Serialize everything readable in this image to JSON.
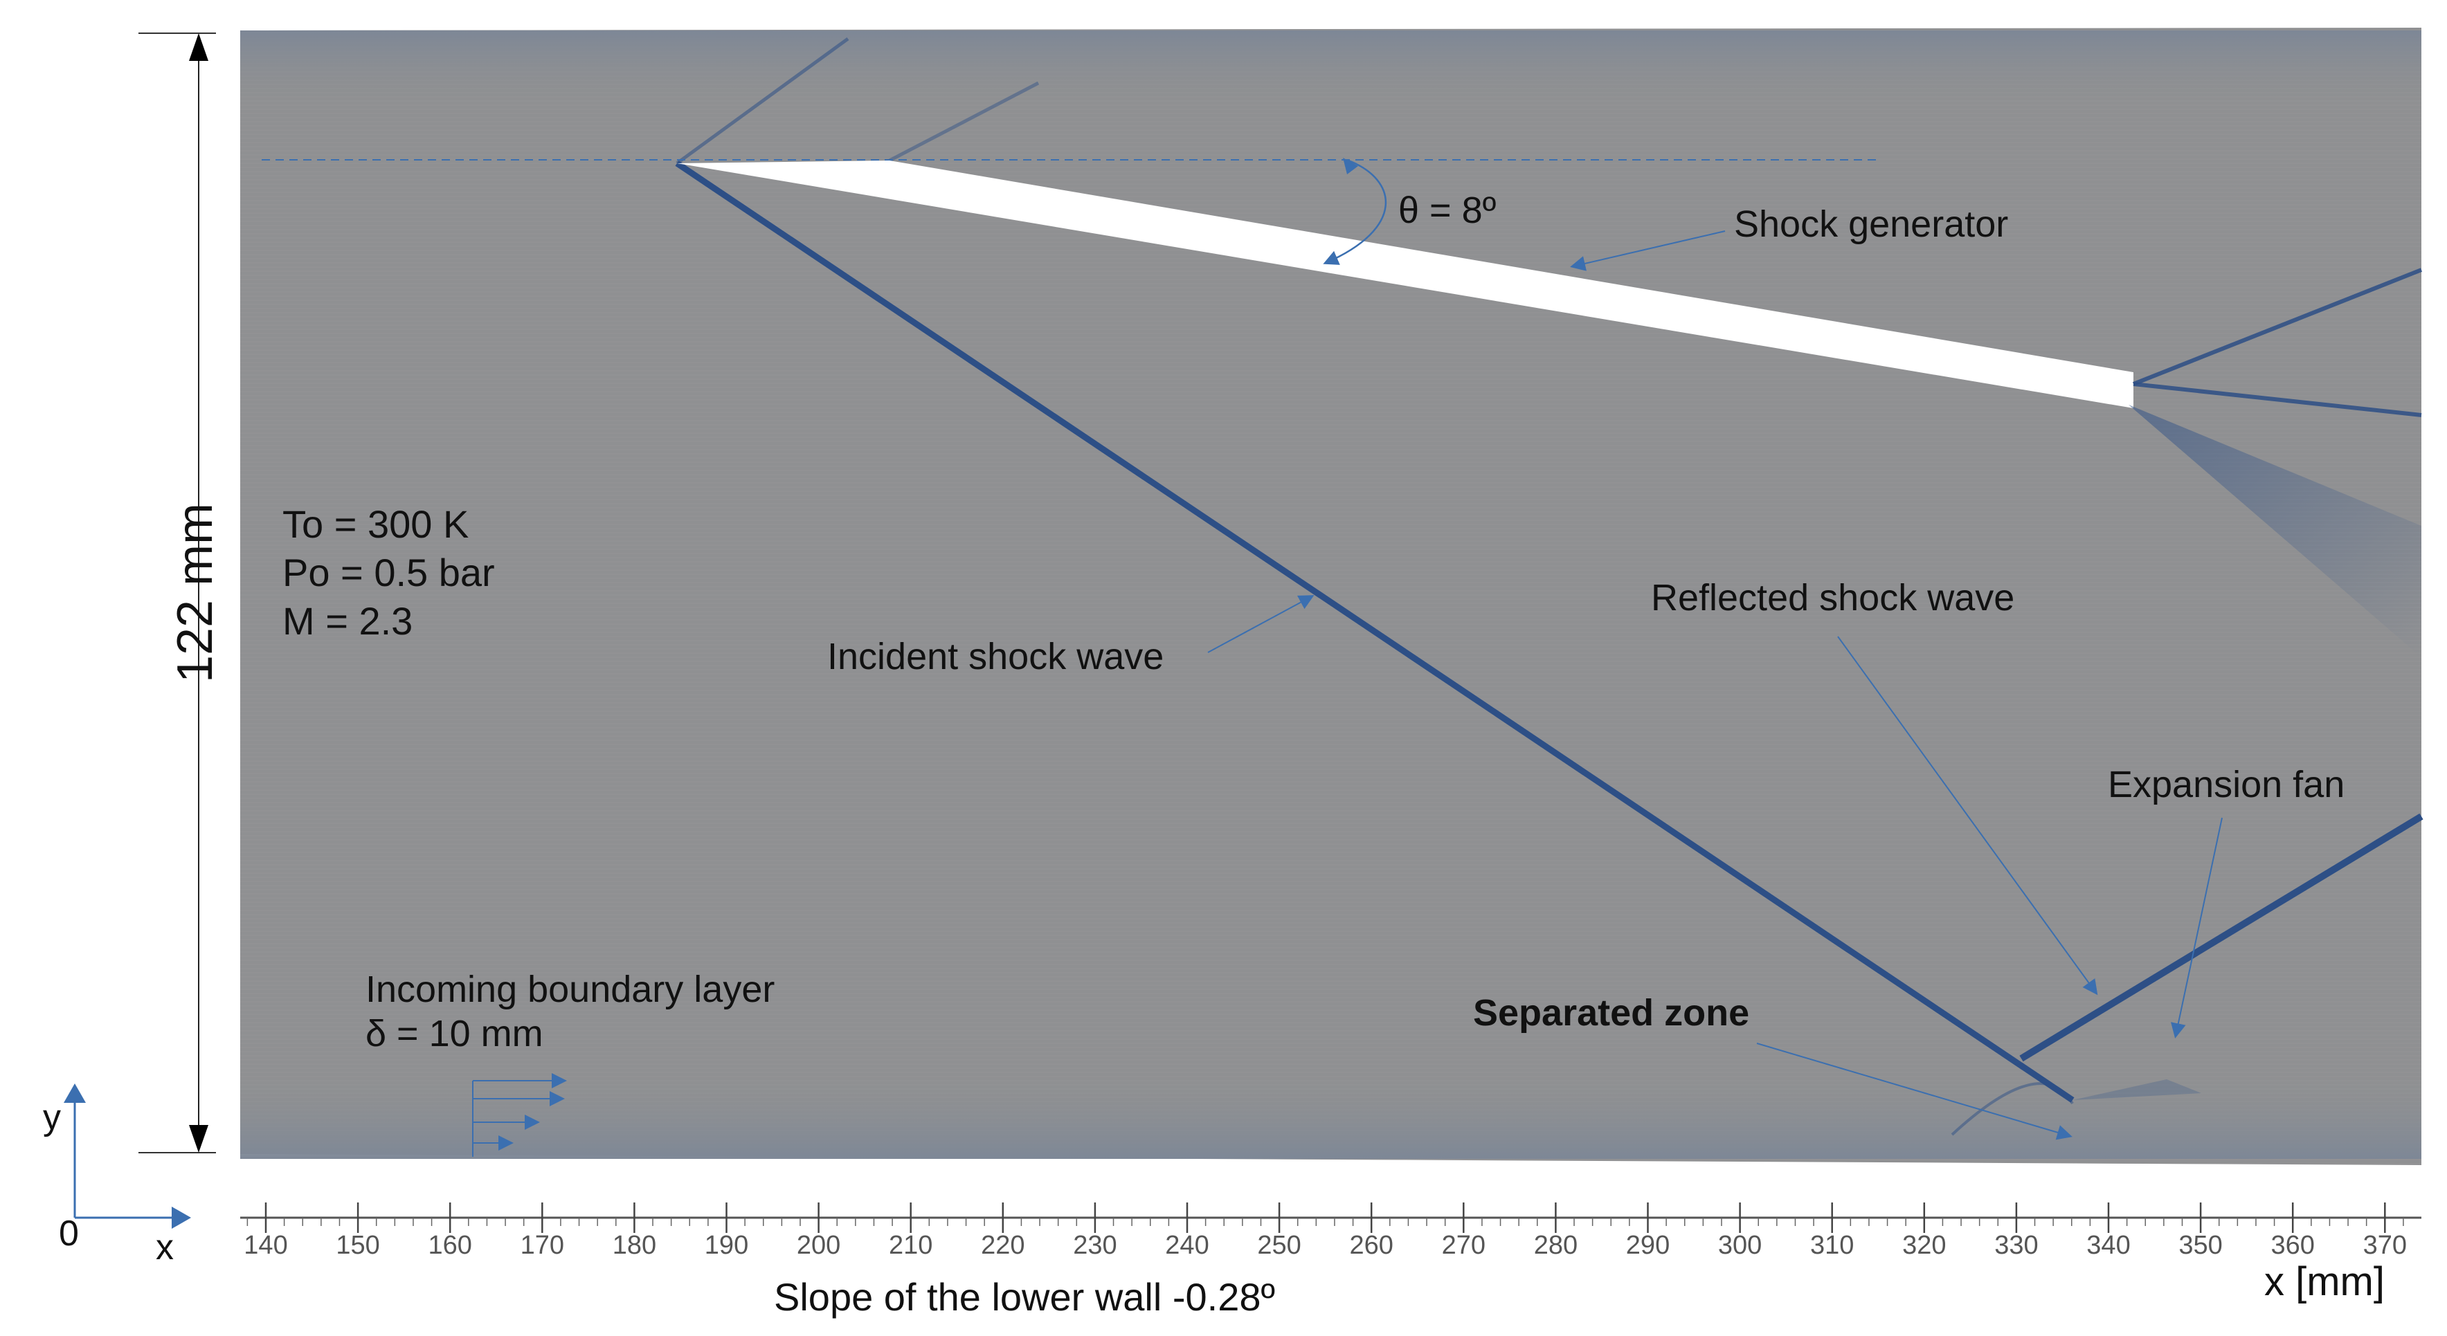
{
  "colors": {
    "field_gray": "#8f9092",
    "shock_blue": "#2d4f86",
    "arrow_blue": "#3b6fb0",
    "generator_white": "#ffffff",
    "text": "#111111"
  },
  "height_label": "122 mm",
  "conditions": {
    "temperature": "To = 300 K",
    "pressure": "Po = 0.5 bar",
    "mach": "M = 2.3"
  },
  "boundary_layer": {
    "label": "Incoming boundary layer",
    "thickness": "δ = 10 mm"
  },
  "annotations": {
    "angle": "θ = 8º",
    "shock_generator": "Shock generator",
    "incident_shock": "Incident shock wave",
    "reflected_shock": "Reflected shock wave",
    "expansion_fan": "Expansion fan",
    "separated_zone": "Separated zone"
  },
  "axes": {
    "y_label": "y",
    "x_label": "x",
    "origin_label": "0",
    "x_axis_title": "x [mm]",
    "x_ticks": [
      "140",
      "150",
      "160",
      "170",
      "180",
      "190",
      "200",
      "210",
      "220",
      "230",
      "240",
      "250",
      "260",
      "270",
      "280",
      "290",
      "300",
      "310",
      "320",
      "330",
      "340",
      "350",
      "360",
      "370"
    ]
  },
  "slope_label": "Slope of the lower wall -0.28º"
}
